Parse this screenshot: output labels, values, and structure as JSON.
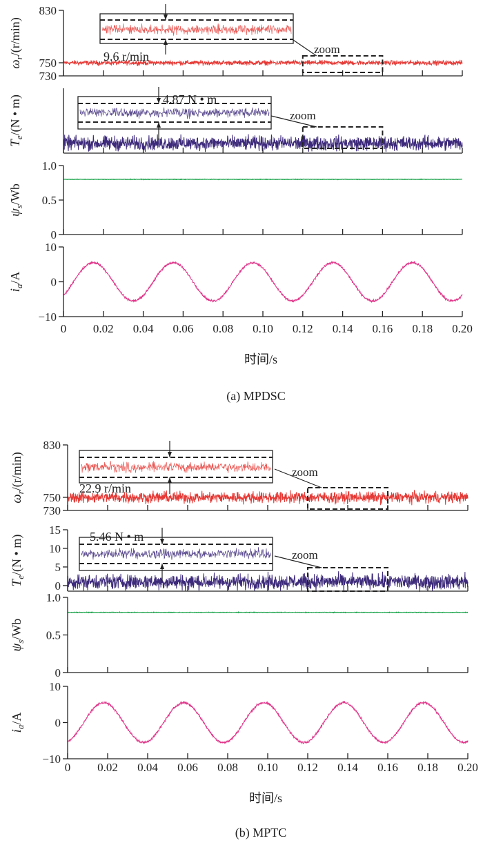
{
  "chart_data": [
    {
      "type": "line",
      "caption": "(a) MPDSC",
      "xlabel": "时间/s",
      "xlim": [
        0,
        0.2
      ],
      "xticks": [
        "0",
        "0.02",
        "0.04",
        "0.06",
        "0.08",
        "0.10",
        "0.12",
        "0.14",
        "0.16",
        "0.18",
        "0.20"
      ],
      "panels": [
        {
          "name": "speed",
          "ylabel": "ωr/(r/min)",
          "ylabel_main": "ω",
          "ylabel_sub": "r",
          "ylabel_unit": "/(r/min)",
          "ylim": [
            730,
            830
          ],
          "yticks": [
            "730",
            "750",
            "830"
          ],
          "ytick_values": [
            730,
            750,
            830
          ],
          "color": "#e53935",
          "mean": 750,
          "ripple": 9.6,
          "inset": {
            "label": "9.6 r/min",
            "zoom_label": "zoom",
            "zoom_range": [
              0.12,
              0.16
            ]
          }
        },
        {
          "name": "torque",
          "ylabel": "Te/(N • m)",
          "ylabel_main": "T",
          "ylabel_sub": "e",
          "ylabel_unit": "/(N • m)",
          "ylim": [
            -1.5,
            15
          ],
          "yticks": [],
          "ytick_values": [],
          "color": "#3d2a7a",
          "mean": 1,
          "ripple": 4.87,
          "inset": {
            "label": "4.87 N • m",
            "zoom_label": "zoom",
            "zoom_range": [
              0.12,
              0.16
            ]
          }
        },
        {
          "name": "flux",
          "ylabel": "ψs/Wb",
          "ylabel_main": "ψ",
          "ylabel_sub": "s",
          "ylabel_unit": "/Wb",
          "ylim": [
            0,
            1.0
          ],
          "yticks": [
            "0",
            "0.5",
            "1.0"
          ],
          "ytick_values": [
            0,
            0.5,
            1.0
          ],
          "color": "#1aa34a",
          "mean": 0.8,
          "ripple": 0.01
        },
        {
          "name": "current",
          "ylabel": "ia/A",
          "ylabel_main": "i",
          "ylabel_sub": "a",
          "ylabel_unit": "/A",
          "ylim": [
            -10,
            10
          ],
          "yticks": [
            "−10",
            "0",
            "10"
          ],
          "ytick_values": [
            -10,
            0,
            10
          ],
          "color": "#e0358a",
          "amplitude": 5.5,
          "frequency_hz": 25,
          "phase_deg": -45,
          "ripple": 1.0
        }
      ]
    },
    {
      "type": "line",
      "caption": "(b) MPTC",
      "xlabel": "时间/s",
      "xlim": [
        0,
        0.2
      ],
      "xticks": [
        "0",
        "0.02",
        "0.04",
        "0.06",
        "0.08",
        "0.10",
        "0.12",
        "0.14",
        "0.16",
        "0.18",
        "0.20"
      ],
      "panels": [
        {
          "name": "speed",
          "ylabel": "ωr/(r/min)",
          "ylabel_main": "ω",
          "ylabel_sub": "r",
          "ylabel_unit": "/(r/min)",
          "ylim": [
            730,
            830
          ],
          "yticks": [
            "730",
            "750",
            "830"
          ],
          "ytick_values": [
            730,
            750,
            830
          ],
          "color": "#e53935",
          "mean": 750,
          "ripple": 22.9,
          "inset": {
            "label": "22.9 r/min",
            "zoom_label": "zoom",
            "zoom_range": [
              0.12,
              0.16
            ]
          }
        },
        {
          "name": "torque",
          "ylabel": "Te/(N • m)",
          "ylabel_main": "T",
          "ylabel_sub": "e",
          "ylabel_unit": "/(N • m)",
          "ylim": [
            -1.5,
            15
          ],
          "yticks": [
            "0",
            "5",
            "10",
            "15"
          ],
          "ytick_values": [
            0,
            5,
            10,
            15
          ],
          "color": "#3d2a7a",
          "mean": 1,
          "ripple": 5.46,
          "inset": {
            "label": "5.46 N • m",
            "zoom_label": "zoom",
            "zoom_range": [
              0.12,
              0.16
            ]
          }
        },
        {
          "name": "flux",
          "ylabel": "ψs/Wb",
          "ylabel_main": "ψ",
          "ylabel_sub": "s",
          "ylabel_unit": "/Wb",
          "ylim": [
            0,
            1.0
          ],
          "yticks": [
            "0",
            "0.5",
            "1.0"
          ],
          "ytick_values": [
            0,
            0.5,
            1.0
          ],
          "color": "#1aa34a",
          "mean": 0.8,
          "ripple": 0.01
        },
        {
          "name": "current",
          "ylabel": "ia/A",
          "ylabel_main": "i",
          "ylabel_sub": "a",
          "ylabel_unit": "/A",
          "ylim": [
            -10,
            10
          ],
          "yticks": [
            "−10",
            "0",
            "10"
          ],
          "ytick_values": [
            -10,
            0,
            10
          ],
          "color": "#e0358a",
          "amplitude": 5.5,
          "frequency_hz": 25,
          "phase_deg": -72,
          "ripple": 1.0
        }
      ]
    }
  ]
}
